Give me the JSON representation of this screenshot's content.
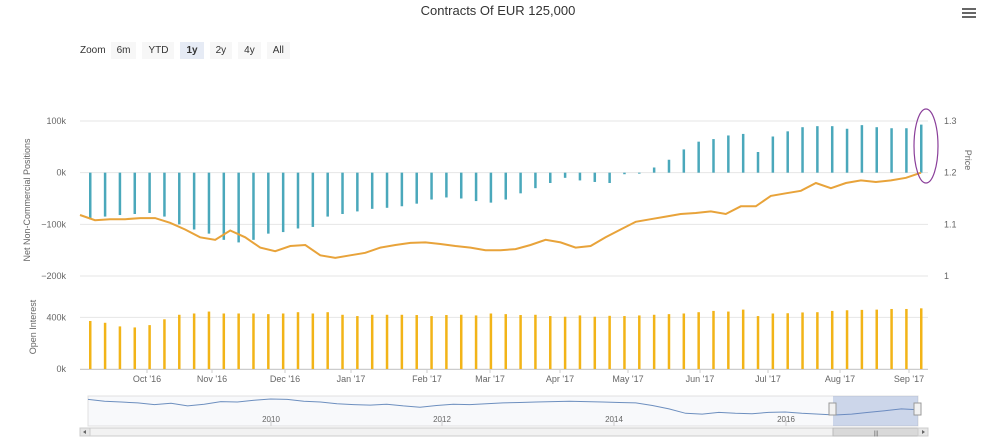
{
  "title": "Contracts Of EUR 125,000",
  "zoom": {
    "label": "Zoom",
    "buttons": [
      "6m",
      "YTD",
      "1y",
      "2y",
      "4y",
      "All"
    ],
    "active": "1y"
  },
  "colors": {
    "positions_bar": "#4aa8bb",
    "price_line": "#e8a33a",
    "open_interest_bar": "#f2b418",
    "navigator_line": "#6d8fbf",
    "highlight_ellipse": "#8a3f9a"
  },
  "chart_data": [
    {
      "type": "bar",
      "ylabel": "Net Non-Commercial Positions",
      "yticks": [
        "100k",
        "0k",
        "−100k",
        "−200k"
      ],
      "ylim": [
        -200000,
        100000
      ],
      "values": [
        -90000,
        -85000,
        -82000,
        -80000,
        -78000,
        -85000,
        -100000,
        -110000,
        -118000,
        -130000,
        -135000,
        -130000,
        -118000,
        -115000,
        -108000,
        -105000,
        -85000,
        -80000,
        -75000,
        -70000,
        -68000,
        -65000,
        -60000,
        -52000,
        -48000,
        -50000,
        -55000,
        -58000,
        -52000,
        -40000,
        -30000,
        -20000,
        -10000,
        -15000,
        -18000,
        -20000,
        -3000,
        -1000,
        10000,
        25000,
        45000,
        60000,
        65000,
        72000,
        75000,
        40000,
        70000,
        80000,
        88000,
        90000,
        90000,
        85000,
        92000,
        88000,
        86000,
        86000,
        93000
      ]
    },
    {
      "type": "line",
      "ylabel": "Price",
      "yticks": [
        "1.3",
        "1.2",
        "1.1",
        "1"
      ],
      "ylim": [
        1.0,
        1.3
      ],
      "values": [
        1.118,
        1.108,
        1.11,
        1.11,
        1.112,
        1.112,
        1.103,
        1.09,
        1.075,
        1.07,
        1.088,
        1.075,
        1.055,
        1.048,
        1.058,
        1.06,
        1.04,
        1.035,
        1.04,
        1.045,
        1.055,
        1.06,
        1.064,
        1.065,
        1.062,
        1.058,
        1.055,
        1.05,
        1.05,
        1.052,
        1.06,
        1.07,
        1.065,
        1.055,
        1.058,
        1.075,
        1.09,
        1.105,
        1.11,
        1.115,
        1.12,
        1.122,
        1.125,
        1.12,
        1.135,
        1.135,
        1.155,
        1.16,
        1.165,
        1.18,
        1.17,
        1.18,
        1.185,
        1.182,
        1.185,
        1.19,
        1.2
      ]
    },
    {
      "type": "bar",
      "ylabel": "Open Interest",
      "yticks": [
        "400k",
        "0k"
      ],
      "ylim": [
        0,
        550000
      ],
      "xticks": [
        "Oct '16",
        "Nov '16",
        "Dec '16",
        "Jan '17",
        "Feb '17",
        "Mar '17",
        "Apr '17",
        "May '17",
        "Jun '17",
        "Jul '17",
        "Aug '17",
        "Sep '17"
      ],
      "values": [
        372000,
        358000,
        330000,
        322000,
        340000,
        385000,
        420000,
        430000,
        445000,
        430000,
        430000,
        430000,
        425000,
        430000,
        440000,
        430000,
        440000,
        420000,
        410000,
        420000,
        420000,
        420000,
        418000,
        410000,
        418000,
        420000,
        415000,
        430000,
        425000,
        418000,
        420000,
        410000,
        405000,
        415000,
        405000,
        412000,
        410000,
        415000,
        420000,
        425000,
        430000,
        440000,
        450000,
        445000,
        460000,
        410000,
        430000,
        432000,
        438000,
        440000,
        450000,
        455000,
        458000,
        460000,
        465000,
        465000,
        470000
      ]
    },
    {
      "type": "line",
      "xticks": [
        "2010",
        "2012",
        "2014",
        "2016"
      ],
      "values": [
        1.42,
        1.38,
        1.36,
        1.34,
        1.3,
        1.33,
        1.27,
        1.31,
        1.37,
        1.36,
        1.4,
        1.43,
        1.42,
        1.38,
        1.36,
        1.32,
        1.3,
        1.29,
        1.31,
        1.27,
        1.24,
        1.28,
        1.31,
        1.3,
        1.32,
        1.34,
        1.35,
        1.36,
        1.37,
        1.38,
        1.37,
        1.36,
        1.35,
        1.34,
        1.28,
        1.2,
        1.1,
        1.08,
        1.12,
        1.1,
        1.09,
        1.12,
        1.13,
        1.1,
        1.08,
        1.06,
        1.08,
        1.12,
        1.16,
        1.2,
        1.18
      ]
    }
  ]
}
